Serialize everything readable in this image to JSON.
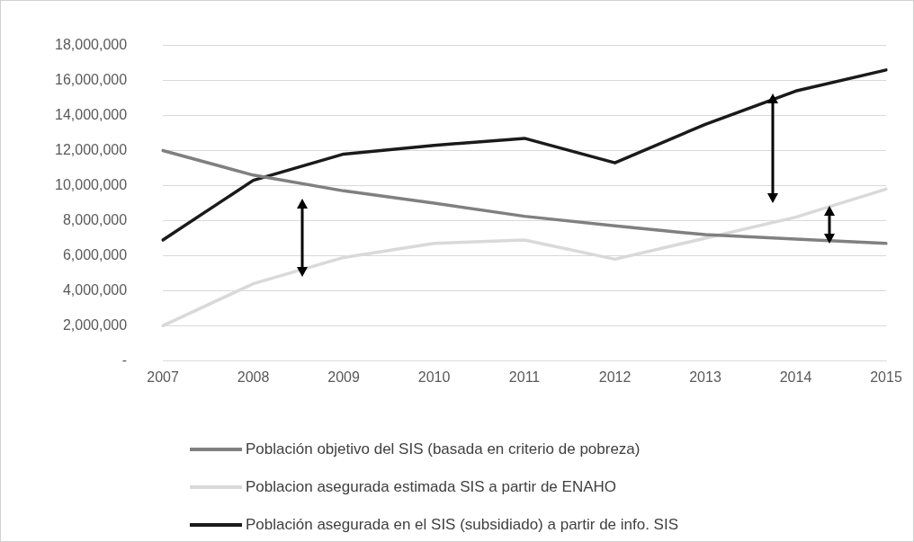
{
  "chart_data": {
    "type": "line",
    "categories": [
      "2007",
      "2008",
      "2009",
      "2010",
      "2011",
      "2012",
      "2013",
      "2014",
      "2015"
    ],
    "series": [
      {
        "name": "Población objetivo del SIS (basada en criterio de pobreza)",
        "color": "#808080",
        "values": [
          12000000,
          10600000,
          9700000,
          9000000,
          8250000,
          7700000,
          7200000,
          6950000,
          6700000
        ]
      },
      {
        "name": "Poblacion asegurada estimada SIS a partir de ENAHO",
        "color": "#d9d9d9",
        "values": [
          2000000,
          4400000,
          5900000,
          6700000,
          6900000,
          5800000,
          7000000,
          8200000,
          9800000
        ]
      },
      {
        "name": "Población asegurada en el SIS (subsidiado) a partir de info. SIS",
        "color": "#1a1a1a",
        "values": [
          6900000,
          10300000,
          11800000,
          12300000,
          12700000,
          11300000,
          13500000,
          15400000,
          16600000
        ]
      }
    ],
    "ylim": [
      0,
      18000000
    ],
    "yticks": [
      {
        "value": 0,
        "label": "-"
      },
      {
        "value": 2000000,
        "label": "2,000,000"
      },
      {
        "value": 4000000,
        "label": "4,000,000"
      },
      {
        "value": 6000000,
        "label": "6,000,000"
      },
      {
        "value": 8000000,
        "label": "8,000,000"
      },
      {
        "value": 10000000,
        "label": "10,000,000"
      },
      {
        "value": 12000000,
        "label": "12,000,000"
      },
      {
        "value": 14000000,
        "label": "14,000,000"
      },
      {
        "value": 16000000,
        "label": "16,000,000"
      },
      {
        "value": 18000000,
        "label": "18,000,000"
      }
    ],
    "grid": "y",
    "legend": "bottom",
    "marker": "none",
    "line_style": "solid"
  }
}
